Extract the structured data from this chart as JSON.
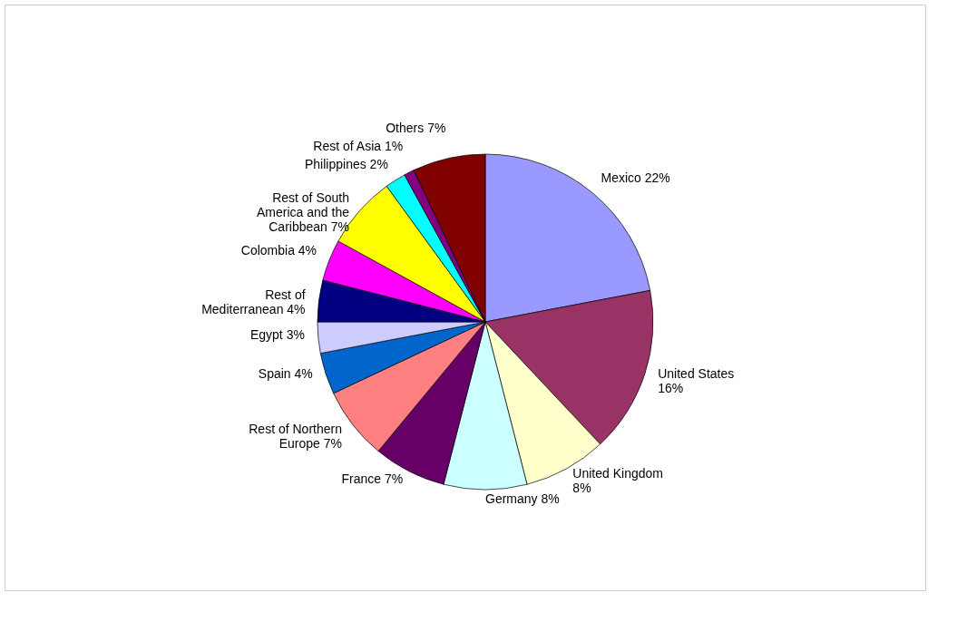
{
  "chart_data": {
    "type": "pie",
    "categories": [
      "Mexico",
      "United States",
      "United Kingdom",
      "Germany",
      "France",
      "Rest of Northern Europe",
      "Spain",
      "Egypt",
      "Rest of Mediterranean",
      "Colombia",
      "Rest of South America and the Caribbean",
      "Philippines",
      "Rest of Asia",
      "Others"
    ],
    "values": [
      22,
      16,
      8,
      8,
      7,
      7,
      4,
      3,
      4,
      4,
      7,
      2,
      1,
      7
    ],
    "value_labels": [
      "22%",
      "16%",
      "8%",
      "8%",
      "7%",
      "7%",
      "4%",
      "3%",
      "4%",
      "4%",
      "7%",
      "2%",
      "1%",
      "7%"
    ],
    "colors": [
      "#9999ff",
      "#993366",
      "#ffffcc",
      "#ccffff",
      "#660066",
      "#ff8080",
      "#0066cc",
      "#ccccff",
      "#000080",
      "#ff00ff",
      "#ffff00",
      "#00ffff",
      "#800080",
      "#800000"
    ],
    "legend": false
  }
}
